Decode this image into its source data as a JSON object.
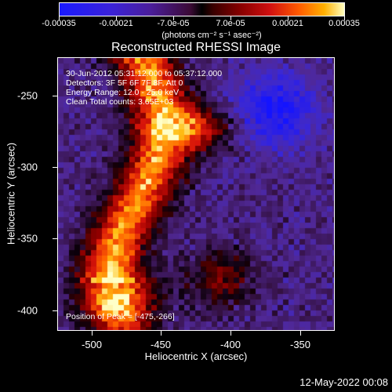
{
  "colorbar": {
    "ticks": [
      "-0.00035",
      "-0.00021",
      "-7.0e-05",
      "7.0e-05",
      "0.00021",
      "0.00035"
    ],
    "unit": "(photons cm⁻² s⁻¹ asec⁻²)"
  },
  "title": "Reconstructed RHESSI Image",
  "annotations": {
    "time_range": "30-Jun-2012 05:31:12.000 to 05:37:12.000",
    "detectors": "Detectors: 3F 5F 6F 7F 8F, Att 0",
    "energy": "Energy Range: 12.0 - 25.0 keV",
    "clean": "Clean     Total counts: 3.65E+03",
    "peak": "Position of Peak = [-475,-266]"
  },
  "axes": {
    "xlabel": "Heliocentric X (arcsec)",
    "ylabel": "Heliocentric Y (arcsec)",
    "xticks": [
      "-500",
      "-450",
      "-400",
      "-350"
    ],
    "yticks": [
      "-250",
      "-300",
      "-350",
      "-400"
    ],
    "xlim": [
      -520,
      -325
    ],
    "ylim": [
      -415,
      -223
    ]
  },
  "timestamp": "12-May-2022 00:08",
  "colors": {
    "background": "#000000",
    "axis": "#ffffff"
  }
}
